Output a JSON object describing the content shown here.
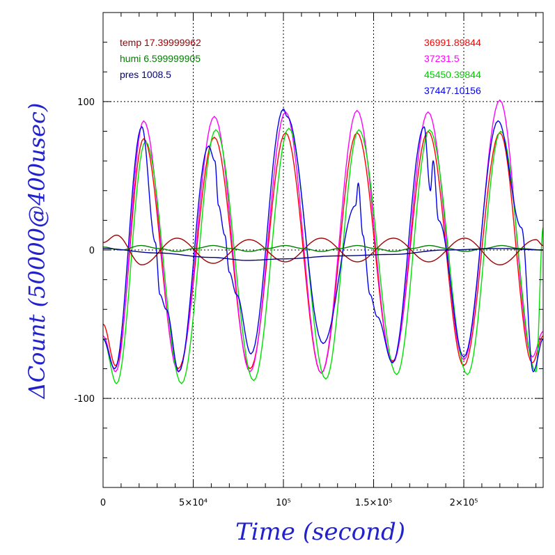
{
  "chart_data": {
    "type": "line",
    "xlabel": "Time (second)",
    "ylabel": "ΔCount (50000@400usec)",
    "xlim": [
      0,
      244000
    ],
    "ylim": [
      -160,
      160
    ],
    "grid": true,
    "legend_position": "top",
    "x_ticks": [
      {
        "value": 0,
        "label": "0"
      },
      {
        "value": 50000,
        "label": "5×10⁴"
      },
      {
        "value": 100000,
        "label": "10⁵"
      },
      {
        "value": 150000,
        "label": "1.5×10⁵"
      },
      {
        "value": 200000,
        "label": "2×10⁵"
      }
    ],
    "y_ticks": [
      {
        "value": 100,
        "label": "100"
      },
      {
        "value": 0,
        "label": "0"
      },
      {
        "value": -100,
        "label": "-100"
      }
    ],
    "legend_left": [
      {
        "text": "temp 17.39999962",
        "color": "#a00000"
      },
      {
        "text": "humi 6.599999905",
        "color": "#008000"
      },
      {
        "text": "pres 1008.5",
        "color": "#000080"
      }
    ],
    "legend_right": [
      {
        "text": "36991.89844",
        "color": "#ff0000"
      },
      {
        "text": "37231.5",
        "color": "#ff00ff"
      },
      {
        "text": "45450.39844",
        "color": "#00cc00"
      },
      {
        "text": "37447.10156",
        "color": "#0000ff"
      }
    ],
    "series": [
      {
        "color": "#ff0000",
        "x": [
          0,
          7000,
          22500,
          41700,
          61700,
          81500,
          101200,
          121000,
          140800,
          160600,
          180200,
          200000,
          220000,
          238000,
          244000
        ],
        "y": [
          -50,
          -78,
          75,
          -80,
          76,
          -80,
          79,
          -83,
          79,
          -75,
          80,
          -78,
          79,
          -76,
          -58
        ]
      },
      {
        "color": "#ff00ff",
        "x": [
          0,
          7000,
          22500,
          41700,
          61700,
          81500,
          101200,
          121000,
          140800,
          160600,
          180200,
          200000,
          220000,
          238000,
          244000
        ],
        "y": [
          -58,
          -82,
          87,
          -82,
          90,
          -82,
          93,
          -83,
          94,
          -76,
          93,
          -74,
          101,
          -72,
          -55
        ]
      },
      {
        "color": "#00e000",
        "x": [
          0,
          7500,
          23500,
          43500,
          62500,
          83500,
          103000,
          123500,
          141800,
          162800,
          181000,
          202000,
          220500,
          240000,
          244000
        ],
        "y": [
          -60,
          -90,
          73,
          -90,
          81,
          -88,
          82,
          -87,
          81,
          -84,
          81,
          -84,
          80,
          -82,
          15
        ]
      },
      {
        "color": "#0000ee",
        "x": [
          0,
          6500,
          21500,
          29000,
          31500,
          35000,
          42000,
          58500,
          62000,
          64000,
          67500,
          70000,
          74000,
          82000,
          100000,
          102000,
          122000,
          140000,
          141500,
          144000,
          148000,
          152000,
          160500,
          178000,
          181500,
          183000,
          186000,
          200000,
          219000,
          232000,
          238500,
          244000
        ],
        "y": [
          -60,
          -80,
          83,
          5,
          -30,
          -40,
          -82,
          70,
          60,
          30,
          10,
          -15,
          -30,
          -70,
          95,
          90,
          -63,
          30,
          45,
          10,
          -30,
          -45,
          -76,
          83,
          40,
          60,
          20,
          -72,
          87,
          15,
          -82,
          -60
        ]
      },
      {
        "color": "#a00000",
        "x": [
          0,
          7500,
          21500,
          41000,
          61000,
          81000,
          101000,
          121000,
          141000,
          161000,
          180500,
          200500,
          220000,
          240000,
          244000
        ],
        "y": [
          5,
          10,
          -10,
          8,
          -9,
          7,
          -8,
          8,
          -8,
          8,
          -8,
          8,
          -10,
          7,
          3
        ]
      },
      {
        "color": "#008000",
        "x": [
          0,
          10000,
          21000,
          31000,
          41000,
          51000,
          61000,
          71000,
          81000,
          91000,
          101000,
          111000,
          121000,
          131000,
          141000,
          151000,
          161000,
          171000,
          181000,
          191000,
          201000,
          211000,
          221000,
          231000,
          244000
        ],
        "y": [
          2,
          0,
          3,
          1,
          -1,
          1,
          3,
          1,
          -1,
          1,
          3,
          1,
          -1,
          1,
          3,
          1,
          -1,
          1,
          3,
          1,
          -1,
          1,
          3,
          1,
          0
        ]
      },
      {
        "color": "#000080",
        "x": [
          0,
          30000,
          60000,
          80000,
          100000,
          130000,
          160000,
          190000,
          220000,
          244000
        ],
        "y": [
          1,
          -2,
          -5,
          -7,
          -6,
          -4,
          -3,
          0,
          1,
          0
        ]
      }
    ]
  }
}
